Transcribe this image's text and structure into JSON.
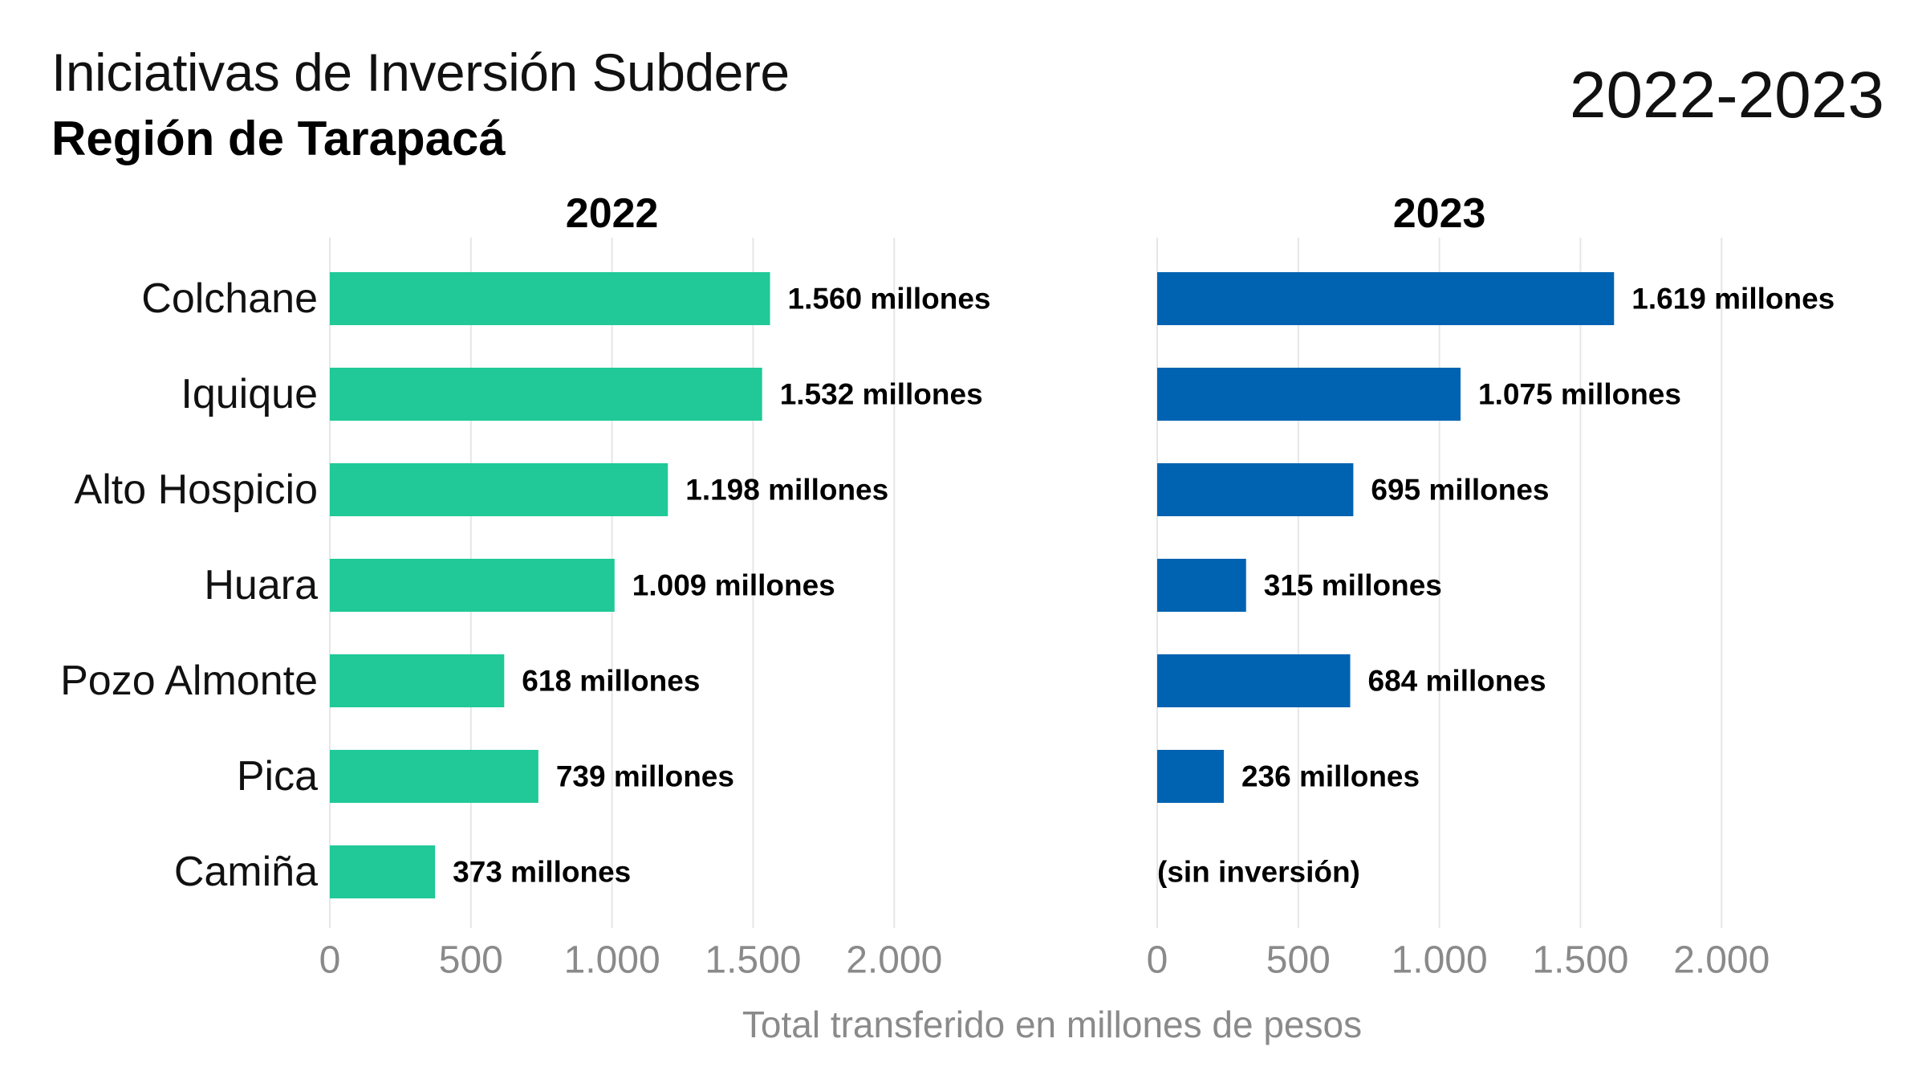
{
  "header": {
    "title": "Iniciativas de Inversión Subdere",
    "subtitle": "Región de Tarapacá",
    "years": "2022-2023"
  },
  "chart_data": {
    "type": "bar",
    "orientation": "horizontal",
    "categories": [
      "Colchane",
      "Iquique",
      "Alto Hospicio",
      "Huara",
      "Pozo Almonte",
      "Pica",
      "Camiña"
    ],
    "series": [
      {
        "name": "2022",
        "color": "#20c997",
        "values": [
          1560,
          1532,
          1198,
          1009,
          618,
          739,
          373
        ],
        "labels": [
          "1.560 millones",
          "1.532 millones",
          "1.198 millones",
          "1.009 millones",
          "618 millones",
          "739 millones",
          "373 millones"
        ]
      },
      {
        "name": "2023",
        "color": "#0063b1",
        "values": [
          1619,
          1075,
          695,
          315,
          684,
          236,
          null
        ],
        "labels": [
          "1.619 millones",
          "1.075 millones",
          "695 millones",
          "315 millones",
          "684 millones",
          "236 millones",
          "(sin inversión)"
        ]
      }
    ],
    "xlim": [
      0,
      2150
    ],
    "xticks": [
      0,
      500,
      1000,
      1500,
      2000
    ],
    "xtick_labels": [
      "0",
      "500",
      "1.000",
      "1.500",
      "2.000"
    ],
    "xlabel": "Total transferido en millones de pesos",
    "grid": true
  }
}
